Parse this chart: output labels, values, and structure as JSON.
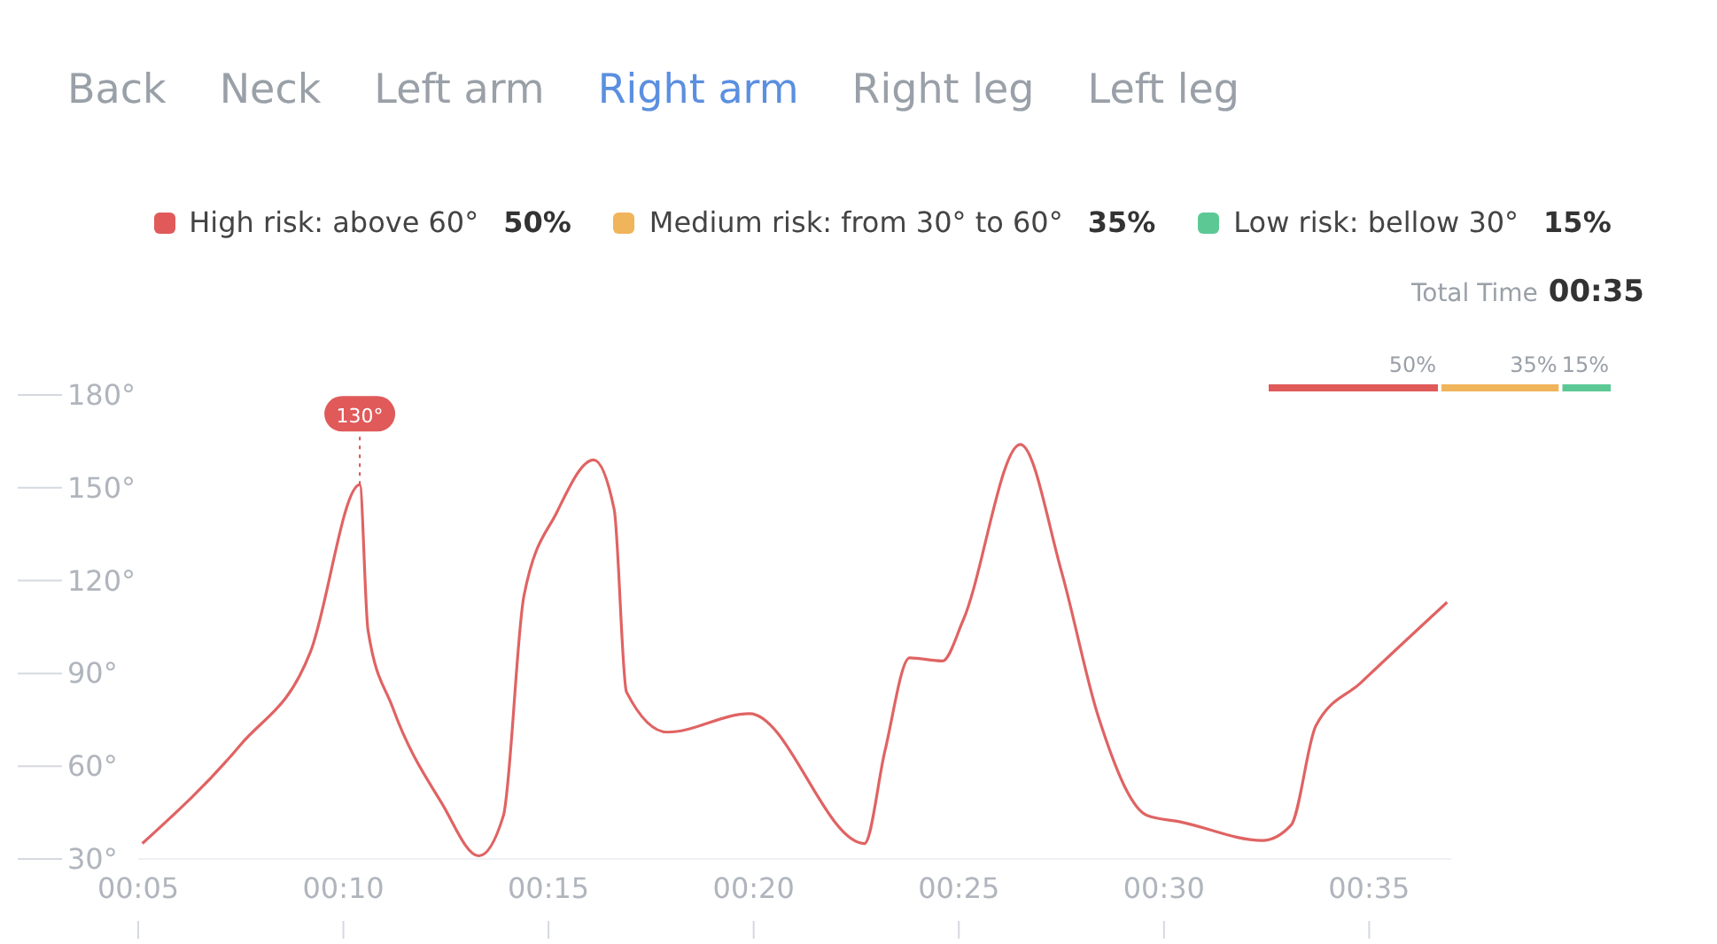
{
  "chart_data": [
    {
      "type": "line",
      "annotations": [
        "Back",
        "Neck",
        "Left arm",
        "Right arm",
        "Right leg",
        "Left leg",
        {
          "text": "130°",
          "x": 10.4,
          "y": 151
        }
      ],
      "x": [
        5.1,
        7.5,
        9.2,
        10.4,
        10.6,
        11.2,
        12.4,
        13.3,
        13.9,
        14.4,
        15.2,
        16.1,
        16.6,
        16.9,
        17.9,
        19.9,
        22.7,
        23.2,
        23.8,
        24.6,
        25.1,
        26.5,
        27.5,
        28.4,
        29.6,
        30.4,
        32.4,
        33.1,
        33.7,
        34.8,
        36.9
      ],
      "series": [
        {
          "color": "#e06363",
          "values": [
            35,
            67,
            97,
            151,
            104,
            79,
            48,
            31,
            44,
            115,
            142,
            159,
            143,
            84,
            71,
            77,
            35,
            65,
            95,
            94,
            107,
            164,
            123,
            76,
            44,
            42,
            36,
            41,
            73,
            87,
            113
          ]
        }
      ],
      "xlim": [
        5,
        37
      ],
      "xticks": [
        {
          "value": 5,
          "label": "00:05"
        },
        {
          "value": 10,
          "label": "00:10"
        },
        {
          "value": 15,
          "label": "00:15"
        },
        {
          "value": 20,
          "label": "00:20"
        },
        {
          "value": 25,
          "label": "00:25"
        },
        {
          "value": 30,
          "label": "00:30"
        },
        {
          "value": 35,
          "label": "00:35"
        }
      ],
      "ylim": [
        30,
        180
      ],
      "yticks": [
        {
          "value": 30,
          "label": "30°"
        },
        {
          "value": 60,
          "label": "60°"
        },
        {
          "value": 90,
          "label": "90°"
        },
        {
          "value": 120,
          "label": "120°"
        },
        {
          "value": 150,
          "label": "150°"
        },
        {
          "value": 180,
          "label": "180°"
        }
      ],
      "grid": false,
      "legend": false,
      "marker": "none",
      "line_style": "solid"
    },
    {
      "type": "bar",
      "orientation": "horizontal",
      "stacked": true,
      "categories": [
        null
      ],
      "tick_labels": false,
      "legend": "top",
      "annotations": [
        "Total Time",
        "00:35"
      ],
      "series": [
        {
          "name": "High risk: above 60°",
          "color": "#e05a5a",
          "values": [
            50
          ],
          "value_labels": [
            "50%"
          ]
        },
        {
          "name": "Medium risk: from 30° to 60°",
          "color": "#f0b45a",
          "values": [
            35
          ],
          "value_labels": [
            "35%"
          ]
        },
        {
          "name": "Low risk: bellow 30°",
          "color": "#5cc995",
          "values": [
            15
          ],
          "value_labels": [
            "15%"
          ]
        }
      ]
    }
  ]
}
